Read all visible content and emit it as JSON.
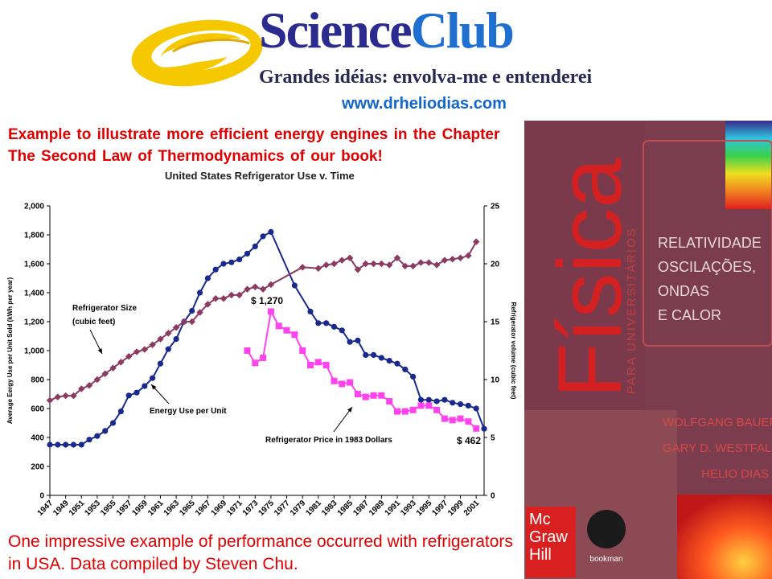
{
  "header": {
    "brand_part1": "Science",
    "brand_part2": "Club",
    "tagline": "Grandes idéias: envolva-me e entenderei",
    "website": "www.drheliodias.com"
  },
  "intro_text": "Example to illustrate more efficient energy engines in the Chapter The Second Law of Thermodynamics of our book!",
  "footer_text": "One impressive example of performance occurred with refrigerators in USA. Data compiled by Steven Chu.",
  "book": {
    "title": "Física",
    "subtitle": "PARA UNIVERSITÁRIOS",
    "topics": [
      "RELATIVIDADE",
      "OSCILAÇÕES,",
      "ONDAS",
      "E CALOR"
    ],
    "authors": [
      "WOLFGANG BAUER",
      "GARY D. WESTFALL",
      "HELIO DIAS"
    ],
    "publisher": [
      "Mc",
      "Graw",
      "Hill"
    ],
    "imprint": "bookman"
  },
  "colors": {
    "energy": "#1a2a8c",
    "size": "#8b3a62",
    "price": "#ff44ee",
    "intro_red": "#e00000",
    "book_bg": "#7b3c4e"
  },
  "chart_data": {
    "type": "line",
    "title": "United States Refrigerator Use v. Time",
    "ylabel": "Average Eergy Use per Unit Sold (kWh per year)",
    "y2label": "Refrigerator volume (cubic feet)",
    "ylim": [
      0,
      2000
    ],
    "y2lim": [
      0,
      25
    ],
    "yticks": [
      "0",
      "200",
      "400",
      "600",
      "800",
      "1,000",
      "1,200",
      "1,400",
      "1,600",
      "1,800",
      "2,000"
    ],
    "y2ticks": [
      "0",
      "5",
      "10",
      "15",
      "20",
      "25"
    ],
    "xlim": [
      1947,
      2002
    ],
    "xticks": [
      "1947",
      "1949",
      "1951",
      "1953",
      "1955",
      "1957",
      "1959",
      "1961",
      "1963",
      "1965",
      "1967",
      "1969",
      "1971",
      "1973",
      "1975",
      "1977",
      "1979",
      "1981",
      "1983",
      "1985",
      "1987",
      "1989",
      "1991",
      "1993",
      "1995",
      "1997",
      "1999",
      "2001"
    ],
    "series": [
      {
        "name": "Energy Use per Unit",
        "axis": "left",
        "points": [
          [
            1947,
            350
          ],
          [
            1948,
            350
          ],
          [
            1949,
            350
          ],
          [
            1950,
            350
          ],
          [
            1951,
            350
          ],
          [
            1952,
            385
          ],
          [
            1953,
            410
          ],
          [
            1954,
            445
          ],
          [
            1955,
            500
          ],
          [
            1956,
            580
          ],
          [
            1957,
            690
          ],
          [
            1958,
            710
          ],
          [
            1959,
            755
          ],
          [
            1960,
            810
          ],
          [
            1961,
            910
          ],
          [
            1962,
            1010
          ],
          [
            1963,
            1080
          ],
          [
            1964,
            1200
          ],
          [
            1965,
            1275
          ],
          [
            1966,
            1400
          ],
          [
            1967,
            1500
          ],
          [
            1968,
            1560
          ],
          [
            1969,
            1600
          ],
          [
            1970,
            1610
          ],
          [
            1971,
            1630
          ],
          [
            1972,
            1670
          ],
          [
            1973,
            1720
          ],
          [
            1974,
            1790
          ],
          [
            1975,
            1820
          ],
          [
            1978,
            1450
          ],
          [
            1980,
            1270
          ],
          [
            1981,
            1190
          ],
          [
            1982,
            1190
          ],
          [
            1983,
            1165
          ],
          [
            1984,
            1140
          ],
          [
            1985,
            1060
          ],
          [
            1986,
            1070
          ],
          [
            1987,
            970
          ],
          [
            1988,
            970
          ],
          [
            1989,
            950
          ],
          [
            1990,
            930
          ],
          [
            1991,
            910
          ],
          [
            1992,
            870
          ],
          [
            1993,
            820
          ],
          [
            1994,
            660
          ],
          [
            1995,
            660
          ],
          [
            1996,
            650
          ],
          [
            1997,
            660
          ],
          [
            1998,
            640
          ],
          [
            1999,
            630
          ],
          [
            2000,
            620
          ],
          [
            2001,
            600
          ],
          [
            2002,
            460
          ]
        ]
      },
      {
        "name": "Refrigerator Size (cubic feet)",
        "axis": "right",
        "points": [
          [
            1947,
            8.2
          ],
          [
            1948,
            8.5
          ],
          [
            1949,
            8.6
          ],
          [
            1950,
            8.6
          ],
          [
            1951,
            9.2
          ],
          [
            1952,
            9.5
          ],
          [
            1953,
            10.0
          ],
          [
            1954,
            10.5
          ],
          [
            1955,
            11.0
          ],
          [
            1956,
            11.5
          ],
          [
            1957,
            12.0
          ],
          [
            1958,
            12.4
          ],
          [
            1959,
            12.6
          ],
          [
            1960,
            13.0
          ],
          [
            1961,
            13.5
          ],
          [
            1962,
            14.0
          ],
          [
            1963,
            14.5
          ],
          [
            1964,
            15.0
          ],
          [
            1965,
            15.0
          ],
          [
            1966,
            15.8
          ],
          [
            1967,
            16.5
          ],
          [
            1968,
            17.0
          ],
          [
            1969,
            17.0
          ],
          [
            1970,
            17.3
          ],
          [
            1971,
            17.3
          ],
          [
            1972,
            17.8
          ],
          [
            1973,
            18.0
          ],
          [
            1974,
            17.8
          ],
          [
            1975,
            18.2
          ],
          [
            1979,
            19.7
          ],
          [
            1981,
            19.6
          ],
          [
            1982,
            19.9
          ],
          [
            1983,
            20.0
          ],
          [
            1984,
            20.3
          ],
          [
            1985,
            20.5
          ],
          [
            1986,
            19.5
          ],
          [
            1987,
            20.0
          ],
          [
            1988,
            20.0
          ],
          [
            1989,
            20.0
          ],
          [
            1990,
            19.9
          ],
          [
            1991,
            20.5
          ],
          [
            1992,
            19.8
          ],
          [
            1993,
            19.8
          ],
          [
            1994,
            20.1
          ],
          [
            1995,
            20.1
          ],
          [
            1996,
            19.9
          ],
          [
            1997,
            20.3
          ],
          [
            1998,
            20.4
          ],
          [
            1999,
            20.5
          ],
          [
            2000,
            20.7
          ],
          [
            2001,
            21.9
          ]
        ]
      },
      {
        "name": "Refrigerator Price in 1983 Dollars",
        "axis": "left",
        "points": [
          [
            1972,
            1000
          ],
          [
            1973,
            915
          ],
          [
            1974,
            950
          ],
          [
            1975,
            1270
          ],
          [
            1976,
            1170
          ],
          [
            1977,
            1140
          ],
          [
            1978,
            1110
          ],
          [
            1979,
            1000
          ],
          [
            1980,
            900
          ],
          [
            1981,
            920
          ],
          [
            1982,
            900
          ],
          [
            1983,
            790
          ],
          [
            1984,
            770
          ],
          [
            1985,
            780
          ],
          [
            1986,
            700
          ],
          [
            1987,
            680
          ],
          [
            1988,
            690
          ],
          [
            1989,
            690
          ],
          [
            1990,
            650
          ],
          [
            1991,
            580
          ],
          [
            1992,
            580
          ],
          [
            1993,
            590
          ],
          [
            1994,
            620
          ],
          [
            1995,
            620
          ],
          [
            1996,
            590
          ],
          [
            1997,
            530
          ],
          [
            1998,
            520
          ],
          [
            1999,
            530
          ],
          [
            2000,
            510
          ],
          [
            2001,
            462
          ]
        ]
      }
    ],
    "annotations": {
      "size_label_line1": "Refrigerator Size",
      "size_label_line2": "(cubic feet)",
      "energy_label": "Energy Use per Unit",
      "price_label": "Refrigerator Price in 1983 Dollars",
      "price_high": "$ 1,270",
      "price_low": "$ 462"
    },
    "grid": false,
    "legend": "none"
  }
}
